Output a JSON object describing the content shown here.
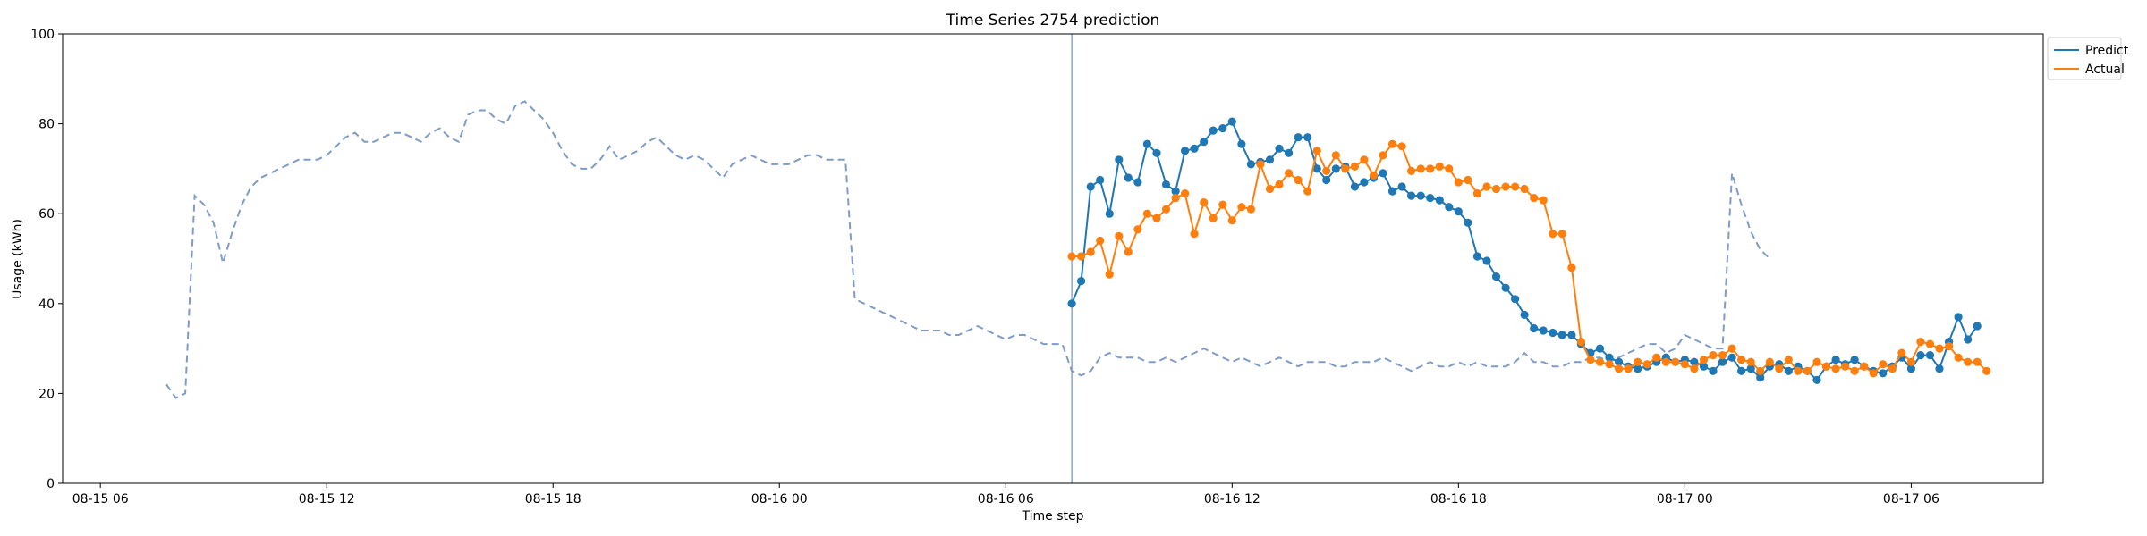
{
  "chart_data": {
    "type": "line",
    "title": "Time Series 2754 prediction",
    "xlabel": "Time step",
    "ylabel": "Usage (kWh)",
    "ylim": [
      0,
      100
    ],
    "yticks": [
      0,
      20,
      40,
      60,
      80,
      100
    ],
    "xlim": [
      "2024-08-15 05:00",
      "2024-08-17 09:30"
    ],
    "xticks": [
      {
        "t": "2024-08-15 06:00",
        "label": "08-15 06"
      },
      {
        "t": "2024-08-15 12:00",
        "label": "08-15 12"
      },
      {
        "t": "2024-08-15 18:00",
        "label": "08-15 18"
      },
      {
        "t": "2024-08-16 00:00",
        "label": "08-16 00"
      },
      {
        "t": "2024-08-16 06:00",
        "label": "08-16 06"
      },
      {
        "t": "2024-08-16 12:00",
        "label": "08-16 12"
      },
      {
        "t": "2024-08-16 18:00",
        "label": "08-16 18"
      },
      {
        "t": "2024-08-17 00:00",
        "label": "08-17 00"
      },
      {
        "t": "2024-08-17 06:00",
        "label": "08-17 06"
      }
    ],
    "grid": false,
    "legend_position": "top-right, outside plot",
    "step_minutes": 15,
    "forecast_start": "2024-08-16 07:45",
    "history": {
      "start": "2024-08-15 07:45",
      "color": "#7f9cc6",
      "style": "dashed",
      "values": [
        22,
        19,
        20,
        64,
        62,
        58,
        49,
        56,
        62,
        66,
        68,
        69,
        70,
        71,
        72,
        72,
        72,
        73,
        75,
        77,
        78,
        76,
        76,
        77,
        78,
        78,
        77,
        76,
        78,
        79,
        77,
        76,
        82,
        83,
        83,
        81,
        80,
        84,
        85,
        83,
        81,
        78,
        74,
        71,
        70,
        70,
        72,
        75,
        72,
        73,
        74,
        76,
        77,
        75,
        73,
        72,
        73,
        72,
        70,
        68,
        71,
        72,
        73,
        72,
        71,
        71,
        71,
        72,
        73,
        73,
        72,
        72,
        72,
        41,
        40,
        39,
        38,
        37,
        36,
        35,
        34,
        34,
        34,
        33,
        33,
        34,
        35,
        34,
        33,
        32,
        33,
        33,
        32,
        31,
        31,
        31,
        25,
        24,
        25,
        28,
        29,
        28,
        28,
        28,
        27,
        27,
        28,
        27,
        28,
        29,
        30,
        29,
        28,
        27,
        28,
        27,
        26,
        27,
        28,
        27,
        26,
        27,
        27,
        27,
        26,
        26,
        27,
        27,
        27,
        28,
        27,
        26,
        25,
        26,
        27,
        26,
        26,
        27,
        26,
        27,
        26,
        26,
        26,
        27,
        29,
        27,
        27,
        26,
        26,
        27,
        27,
        28,
        28,
        27,
        28,
        29,
        30,
        31,
        31,
        29,
        30,
        33,
        32,
        31,
        30,
        30,
        69,
        62,
        56,
        52,
        50
      ]
    },
    "series": [
      {
        "name": "Predict",
        "color": "#1f77b4",
        "start": "2024-08-16 07:45",
        "values": [
          40,
          45,
          66,
          67.5,
          60,
          72,
          68,
          67,
          75.5,
          73.5,
          66.5,
          65,
          74,
          74.5,
          76,
          78.5,
          79,
          80.5,
          75.5,
          71,
          71.5,
          72,
          74.5,
          73.5,
          77,
          77,
          70,
          67.5,
          70,
          70.5,
          66,
          67,
          68,
          69,
          65,
          66,
          64,
          64,
          63.5,
          63,
          61.5,
          60.5,
          58,
          50.5,
          49.5,
          46,
          43.5,
          41,
          37.5,
          34.5,
          34,
          33.5,
          33,
          33,
          31,
          29,
          30,
          28,
          27,
          26,
          25.5,
          26,
          27,
          28,
          27,
          27.5,
          27,
          26,
          25,
          27,
          28,
          25,
          25.5,
          23.5,
          26,
          26.5,
          25,
          26,
          25,
          23,
          26,
          27.5,
          26.5,
          27.5,
          26,
          25,
          24.5,
          26,
          28,
          25.5,
          28.5,
          28.5,
          25.5,
          31.5,
          37,
          32,
          35
        ]
      },
      {
        "name": "Actual",
        "color": "#ff7f0e",
        "start": "2024-08-16 07:45",
        "values": [
          50.5,
          50.5,
          51.5,
          54,
          46.5,
          55,
          51.5,
          56.5,
          60,
          59,
          61,
          63.5,
          64.5,
          55.5,
          62.5,
          59,
          62,
          58.5,
          61.5,
          61,
          71,
          65.5,
          66.5,
          69,
          67.5,
          65,
          74,
          69.5,
          73,
          70,
          70.5,
          72,
          68.5,
          73,
          75.5,
          75,
          69.5,
          70,
          70,
          70.5,
          70,
          67,
          67.5,
          64.5,
          66,
          65.5,
          66,
          66,
          65.5,
          63.5,
          63,
          55.5,
          55.5,
          48,
          31.5,
          27.5,
          27,
          26.5,
          25.5,
          25.5,
          27,
          26.5,
          28,
          27,
          27,
          26.5,
          25.5,
          27.5,
          28.5,
          28.5,
          30,
          27.5,
          27,
          25,
          27,
          25.5,
          27.5,
          25,
          25,
          27,
          26,
          25.5,
          26,
          25,
          26,
          24.5,
          26.5,
          25.5,
          29,
          27,
          31.5,
          31,
          30,
          30.5,
          28,
          27,
          27,
          25
        ]
      }
    ]
  }
}
